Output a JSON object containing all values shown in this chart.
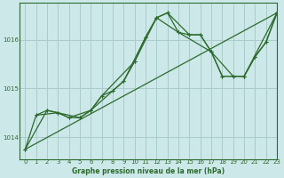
{
  "background_color": "#cce8e8",
  "plot_bg_color": "#cce8e8",
  "grid_color": "#aacccc",
  "line_color": "#2d6a2d",
  "xlabel": "Graphe pression niveau de la mer (hPa)",
  "xlim": [
    -0.5,
    23
  ],
  "ylim": [
    1013.55,
    1016.75
  ],
  "yticks": [
    1014,
    1015,
    1016
  ],
  "xticks": [
    0,
    1,
    2,
    3,
    4,
    5,
    6,
    7,
    8,
    9,
    10,
    11,
    12,
    13,
    14,
    15,
    16,
    17,
    18,
    19,
    20,
    21,
    22,
    23
  ],
  "series1_x": [
    0,
    1,
    2,
    3,
    4,
    5,
    6,
    7,
    8,
    9,
    10,
    11,
    12,
    13,
    14,
    15,
    16,
    17,
    18,
    19,
    20,
    21,
    22,
    23
  ],
  "series1_y": [
    1013.75,
    1014.45,
    1014.55,
    1014.5,
    1014.4,
    1014.4,
    1014.55,
    1014.85,
    1014.95,
    1015.15,
    1015.55,
    1016.05,
    1016.45,
    1016.55,
    1016.15,
    1016.1,
    1016.1,
    1015.75,
    1015.25,
    1015.25,
    1015.25,
    1015.65,
    1015.95,
    1016.55
  ],
  "series2_x": [
    0,
    23
  ],
  "series2_y": [
    1013.75,
    1016.55
  ],
  "series3_x": [
    1,
    3,
    4,
    6,
    7,
    10,
    12,
    13,
    15,
    16,
    17,
    19,
    20,
    21,
    22,
    23
  ],
  "series3_y": [
    1014.45,
    1014.5,
    1014.4,
    1014.55,
    1014.85,
    1015.55,
    1016.45,
    1016.55,
    1016.1,
    1016.1,
    1015.75,
    1015.25,
    1015.25,
    1015.65,
    1015.95,
    1016.55
  ],
  "series4_x": [
    0,
    2,
    3,
    5,
    6,
    8,
    9,
    11,
    12,
    14,
    17,
    18,
    20,
    23
  ],
  "series4_y": [
    1013.75,
    1014.55,
    1014.5,
    1014.4,
    1014.55,
    1014.95,
    1015.15,
    1016.05,
    1016.45,
    1016.15,
    1015.75,
    1015.25,
    1015.25,
    1016.55
  ]
}
